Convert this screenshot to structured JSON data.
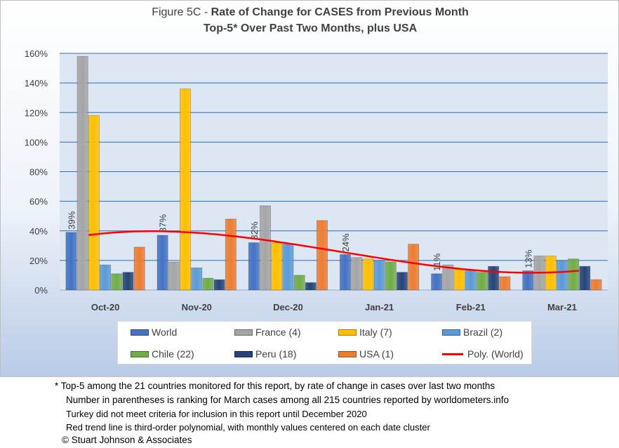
{
  "title": {
    "prefix": "Figure 5C - ",
    "main": "Rate of Change for CASES from Previous Month",
    "subtitle": "Top-5* Over Past Two Months, plus USA"
  },
  "chart_data": {
    "type": "bar",
    "categories": [
      "Oct-20",
      "Nov-20",
      "Dec-20",
      "Jan-21",
      "Feb-21",
      "Mar-21"
    ],
    "ylim": [
      0,
      160
    ],
    "yticks": [
      0,
      20,
      40,
      60,
      80,
      100,
      120,
      140,
      160
    ],
    "ytick_labels": [
      "0%",
      "20%",
      "40%",
      "60%",
      "80%",
      "100%",
      "120%",
      "140%",
      "160%"
    ],
    "grid": true,
    "legend_position": "bottom",
    "series": [
      {
        "name": "World",
        "color": "#4472c4",
        "values": [
          39,
          37,
          32,
          24,
          11,
          13
        ],
        "data_labels": [
          "39%",
          "37%",
          "32%",
          "24%",
          "11%",
          "13%"
        ]
      },
      {
        "name": "France (4)",
        "color": "#a5a5a5",
        "values": [
          158,
          19,
          57,
          22,
          17,
          23
        ]
      },
      {
        "name": "Italy (7)",
        "color": "#ffc000",
        "values": [
          118,
          136,
          32,
          21,
          14,
          23
        ]
      },
      {
        "name": "Brazil (2)",
        "color": "#5b9bd5",
        "values": [
          17,
          15,
          31,
          20,
          13,
          20
        ]
      },
      {
        "name": "Chile (22)",
        "color": "#70ad47",
        "values": [
          11,
          8,
          10,
          19,
          12,
          21
        ]
      },
      {
        "name": "Peru (18)",
        "color": "#264478",
        "values": [
          12,
          7,
          5,
          12,
          16,
          16
        ]
      },
      {
        "name": "USA (1)",
        "color": "#ed7d31",
        "values": [
          29,
          48,
          47,
          31,
          9,
          7
        ]
      }
    ],
    "trendline": {
      "name": "Poly. (World)",
      "color": "#ff0000",
      "of_series": "World",
      "order": 3
    }
  },
  "footnotes": [
    "* Top-5 among the 21 countries monitored for this report, by rate of change in cases over last two months",
    "Number in parentheses is ranking for March cases among all 215 countries reported by worldometers.info",
    "Turkey did not meet criteria for inclusion in this report until December 2020",
    "Red trend line is third-order polynomial, with monthly values centered on each date cluster",
    "© Stuart Johnson & Associates"
  ]
}
